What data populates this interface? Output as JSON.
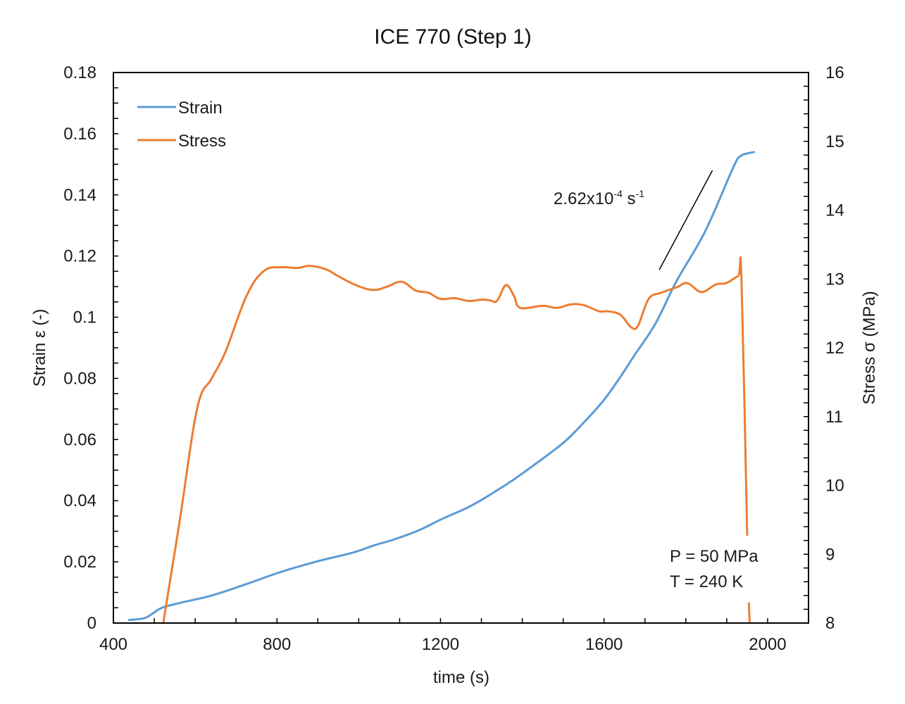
{
  "chart_data": {
    "type": "line",
    "title": "ICE 770 (Step 1)",
    "xlabel": "time (s)",
    "ylabel": "Strain ε (-)",
    "y2label": "Stress σ (MPa)",
    "xlim": [
      400,
      2100
    ],
    "ylim": [
      0,
      0.18
    ],
    "y2lim": [
      8,
      16
    ],
    "x_ticks": [
      400,
      800,
      1200,
      1600,
      2000
    ],
    "x_tick_labels": [
      "400",
      "800",
      "1200",
      "1600",
      "2000"
    ],
    "x_minor_step": 100,
    "y_ticks": [
      0,
      0.02,
      0.04,
      0.06,
      0.08,
      0.1,
      0.12,
      0.14,
      0.16,
      0.18
    ],
    "y_tick_labels": [
      "0",
      "0.02",
      "0.04",
      "0.06",
      "0.08",
      "0.1",
      "0.12",
      "0.14",
      "0.16",
      "0.18"
    ],
    "y_minor_step": 0.005,
    "y2_ticks": [
      8,
      9,
      10,
      11,
      12,
      13,
      14,
      15,
      16
    ],
    "y2_tick_labels": [
      "8",
      "9",
      "10",
      "11",
      "12",
      "13",
      "14",
      "15",
      "16"
    ],
    "y2_minor_step": 0.2,
    "grid": false,
    "legend": {
      "position": "top-left",
      "entries": [
        "Strain",
        "Stress"
      ]
    },
    "series": [
      {
        "name": "Strain",
        "axis": "left",
        "color": "#5b9bd5",
        "x": [
          438,
          476,
          500,
          519,
          560,
          640,
          720,
          812,
          900,
          985,
          1040,
          1088,
          1150,
          1203,
          1270,
          1329,
          1380,
          1432,
          1501,
          1550,
          1600,
          1640,
          1674,
          1726,
          1778,
          1847,
          1916,
          1933,
          1950,
          1967
        ],
        "y": [
          0.001,
          0.0016,
          0.0035,
          0.005,
          0.0065,
          0.009,
          0.0125,
          0.0168,
          0.0202,
          0.023,
          0.0255,
          0.0274,
          0.0305,
          0.034,
          0.038,
          0.0426,
          0.047,
          0.052,
          0.059,
          0.0655,
          0.073,
          0.0805,
          0.0875,
          0.098,
          0.112,
          0.128,
          0.149,
          0.1526,
          0.1535,
          0.154
        ]
      },
      {
        "name": "Stress",
        "axis": "right",
        "color": "#ed7d31",
        "x": [
          522,
          562,
          605,
          640,
          674,
          726,
          769,
          812,
          850,
          881,
          920,
          950,
          993,
          1036,
          1070,
          1105,
          1140,
          1170,
          1200,
          1235,
          1269,
          1300,
          1321,
          1338,
          1360,
          1380,
          1395,
          1450,
          1485,
          1519,
          1550,
          1588,
          1609,
          1640,
          1666,
          1683,
          1709,
          1740,
          1778,
          1804,
          1838,
          1873,
          1899,
          1928,
          1936,
          1950
        ],
        "y": [
          8.0,
          9.48,
          11.12,
          11.55,
          11.94,
          12.76,
          13.12,
          13.17,
          13.16,
          13.19,
          13.14,
          13.04,
          12.91,
          12.84,
          12.89,
          12.96,
          12.83,
          12.8,
          12.71,
          12.72,
          12.68,
          12.7,
          12.69,
          12.68,
          12.91,
          12.75,
          12.58,
          12.61,
          12.58,
          12.63,
          12.62,
          12.53,
          12.53,
          12.48,
          12.3,
          12.32,
          12.71,
          12.8,
          12.88,
          12.94,
          12.81,
          12.92,
          12.94,
          13.04,
          13.0,
          9.28
        ],
        "tail_segment": {
          "x": [
            1954,
            1956
          ],
          "y": [
            8.3,
            8.0
          ]
        }
      }
    ],
    "annotations": [
      {
        "text_base": "2.62x10",
        "text_sup1": "-4",
        "text_mid": " s",
        "text_sup2": "-1",
        "label": "2.62x10^-4 s^-1",
        "slope_line": {
          "x": [
            1735,
            1865
          ],
          "y": [
            0.1155,
            0.148
          ]
        }
      },
      {
        "text": "P = 50 MPa"
      },
      {
        "text": "T = 240 K"
      }
    ]
  }
}
